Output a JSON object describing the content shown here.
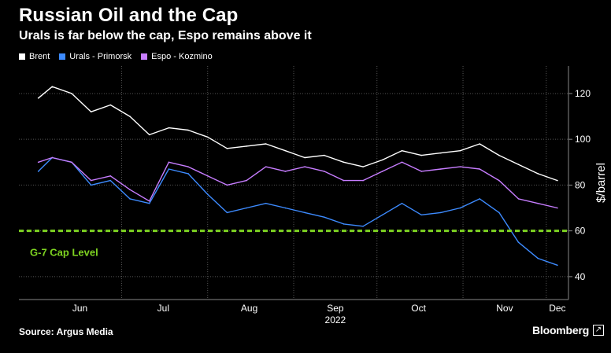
{
  "header": {
    "title": "Russian Oil and the Cap",
    "subtitle": "Urals is far below the cap, Espo remains above it"
  },
  "footer": {
    "source": "Source: Argus Media",
    "brand": "Bloomberg",
    "brand_icon": "external-link-icon"
  },
  "chart_data": {
    "type": "line",
    "ylabel": "$/barrel",
    "ylim": [
      30,
      132
    ],
    "yticks": [
      40,
      60,
      80,
      100,
      120
    ],
    "xlabel": "",
    "year_label": "2022",
    "month_labels": [
      "Jun",
      "Jul",
      "Aug",
      "Sep",
      "Oct",
      "Nov",
      "Dec"
    ],
    "grid": true,
    "legend_position": "top-left",
    "x": [
      "2022-06-01",
      "2022-06-06",
      "2022-06-13",
      "2022-06-20",
      "2022-06-27",
      "2022-07-04",
      "2022-07-11",
      "2022-07-18",
      "2022-07-25",
      "2022-08-01",
      "2022-08-08",
      "2022-08-15",
      "2022-08-22",
      "2022-08-29",
      "2022-09-05",
      "2022-09-12",
      "2022-09-19",
      "2022-09-26",
      "2022-10-03",
      "2022-10-10",
      "2022-10-17",
      "2022-10-24",
      "2022-10-31",
      "2022-11-07",
      "2022-11-14",
      "2022-11-21",
      "2022-11-28",
      "2022-12-05"
    ],
    "series": [
      {
        "name": "Brent",
        "color": "#ffffff",
        "values": [
          118,
          123,
          120,
          112,
          115,
          110,
          102,
          105,
          104,
          101,
          96,
          97,
          98,
          95,
          92,
          93,
          90,
          88,
          91,
          95,
          93,
          94,
          95,
          98,
          93,
          89,
          85,
          82
        ]
      },
      {
        "name": "Urals - Primorsk",
        "color": "#3d8bff",
        "values": [
          86,
          92,
          90,
          80,
          82,
          74,
          72,
          87,
          85,
          76,
          68,
          70,
          72,
          70,
          68,
          66,
          63,
          62,
          67,
          72,
          67,
          68,
          70,
          74,
          68,
          55,
          48,
          45
        ]
      },
      {
        "name": "Espo - Kozmino",
        "color": "#c77dff",
        "values": [
          90,
          92,
          90,
          82,
          84,
          78,
          73,
          90,
          88,
          84,
          80,
          82,
          88,
          86,
          88,
          86,
          82,
          82,
          86,
          90,
          86,
          87,
          88,
          87,
          82,
          74,
          72,
          70
        ]
      }
    ],
    "reference_line": {
      "value": 60,
      "label": "G-7 Cap Level",
      "color": "#7ed321"
    }
  }
}
